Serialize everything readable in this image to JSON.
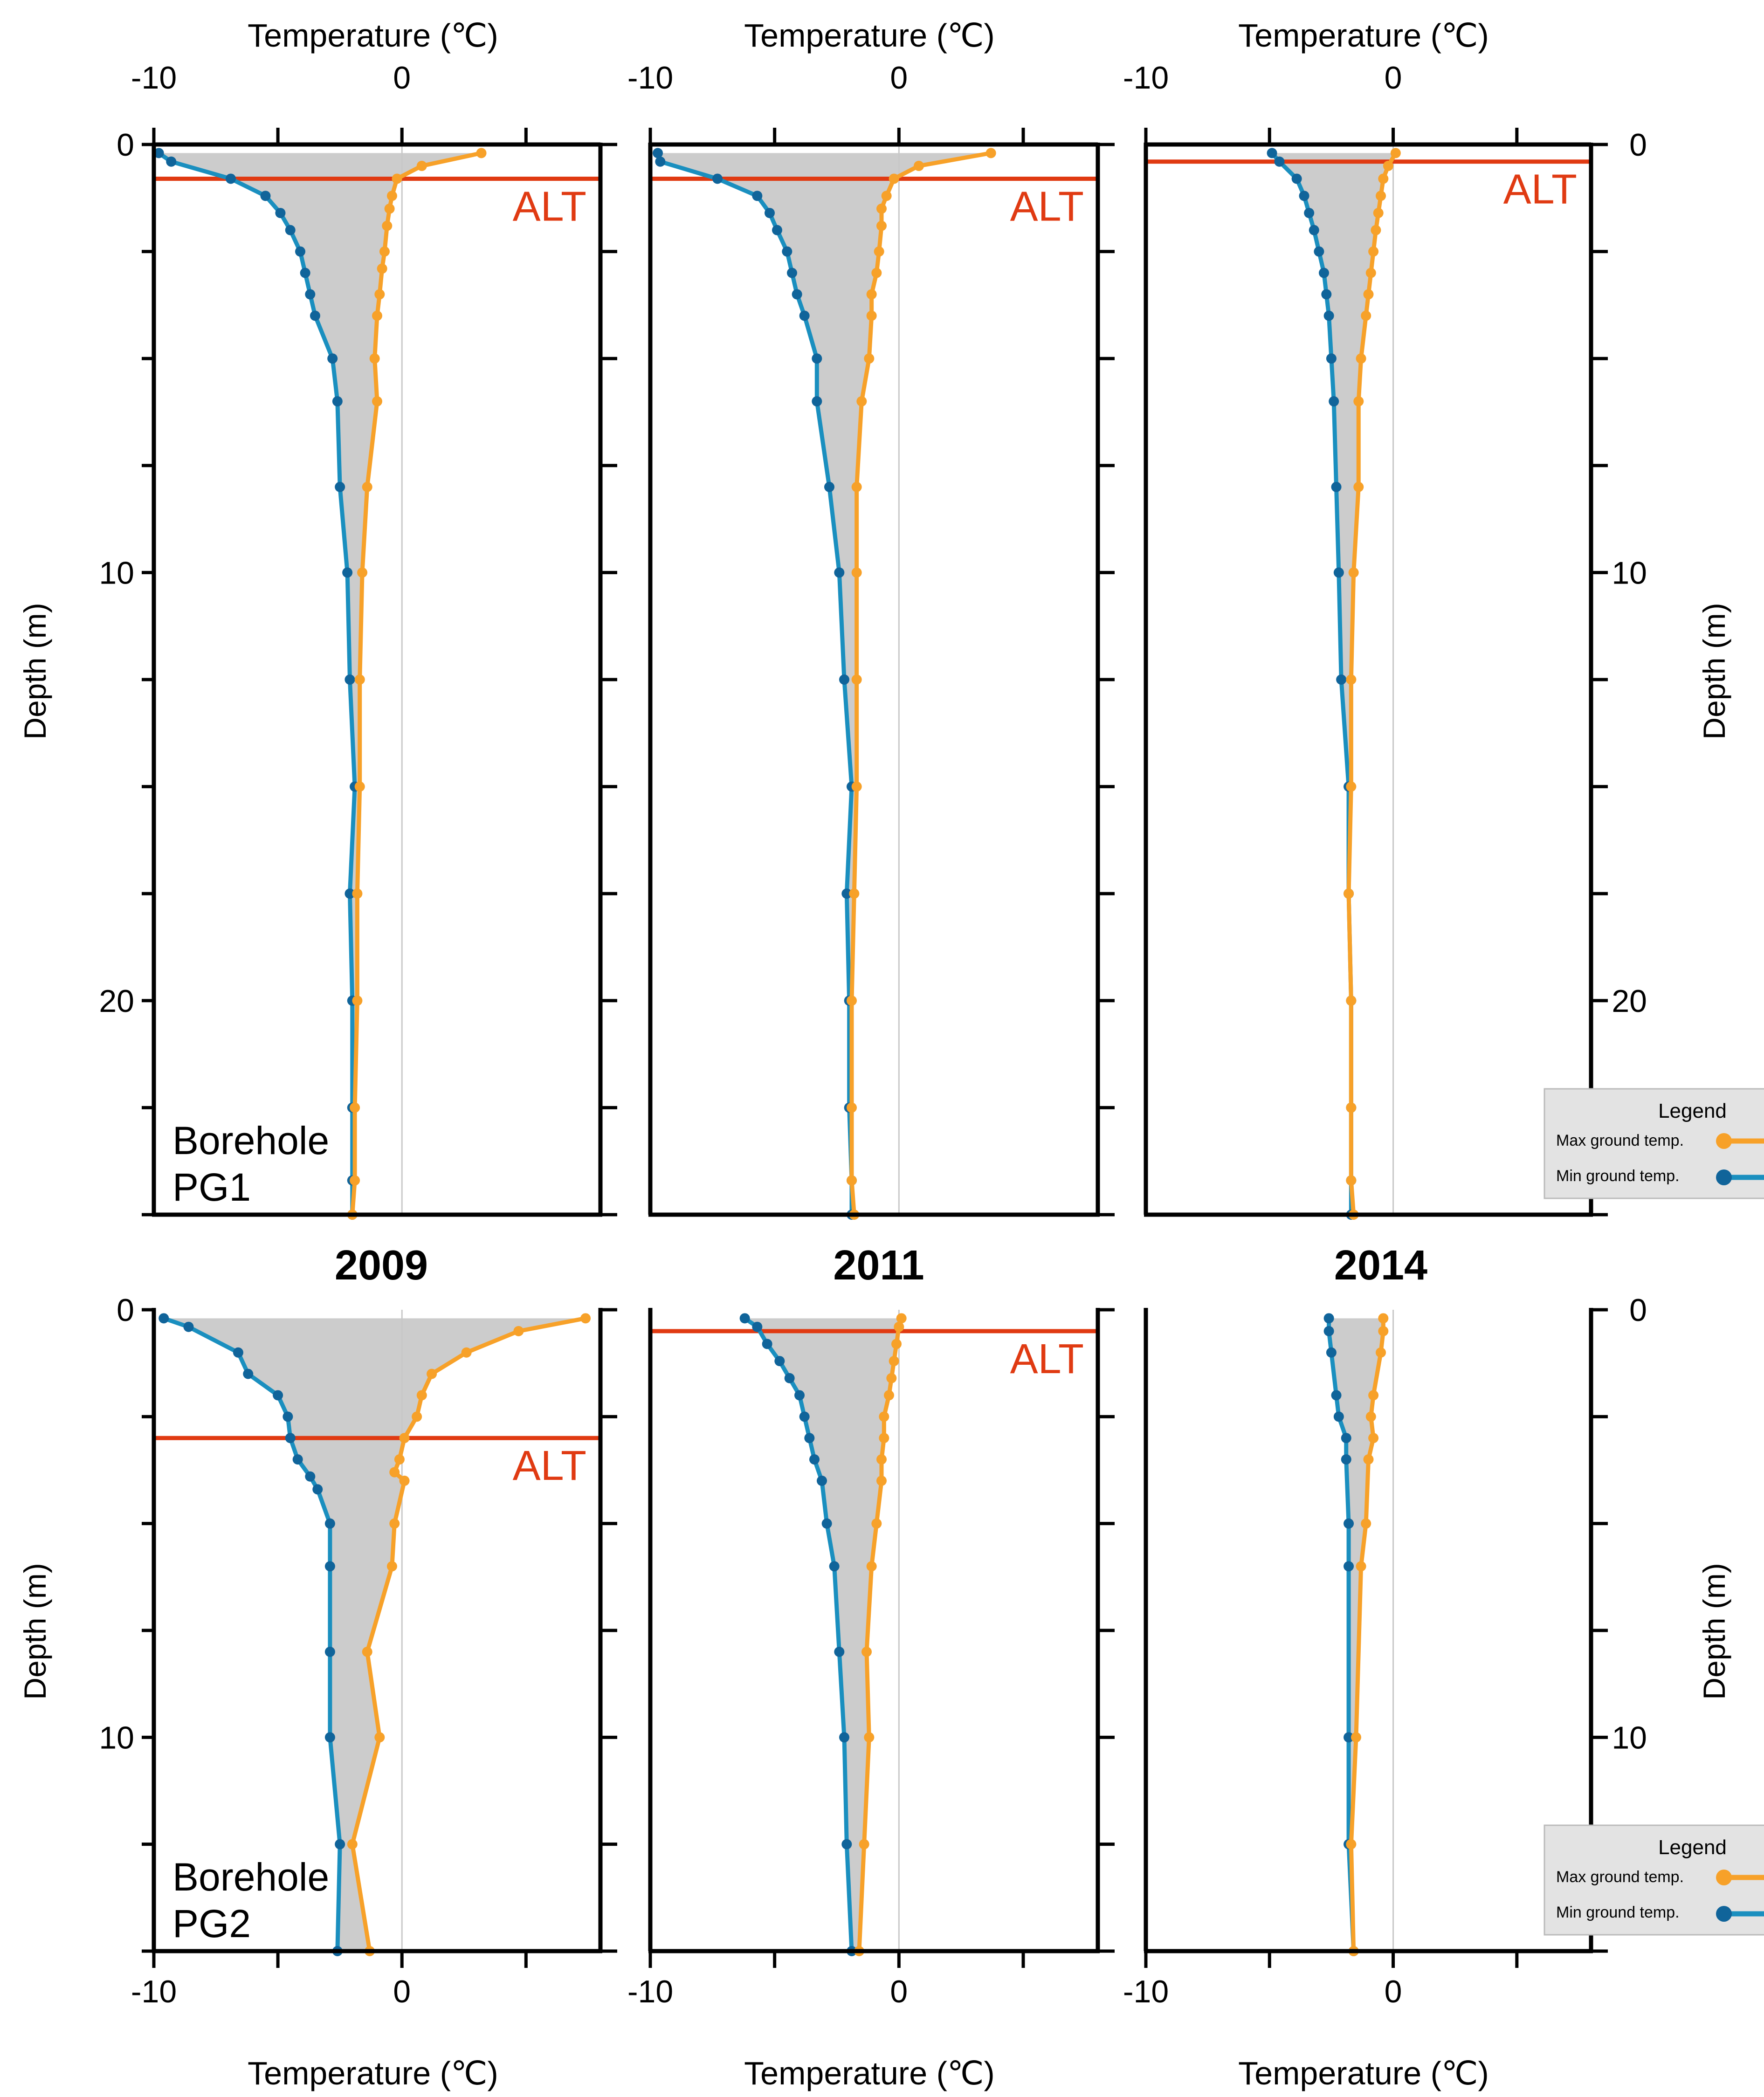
{
  "figure": {
    "top_axis_label": "Temperature (℃)",
    "bottom_axis_label": "Temperature (℃)",
    "y_axis_label": "Depth (m)",
    "alt_label": "ALT",
    "row_labels": [
      "Borehole\nPG1",
      "Borehole\nPG2"
    ],
    "year_labels": [
      "2009",
      "2011",
      "2014"
    ],
    "legend": {
      "title": "Legend",
      "max_label": "Max ground temp.",
      "min_label": "Min ground temp."
    }
  },
  "colors": {
    "max": "#F7A129",
    "min": "#1A8FBF",
    "min_marker": "#10649A",
    "envelope": "#CCCCCC",
    "alt_line": "#E03A12",
    "axis": "#000000",
    "zero_line": "#C8C8C8"
  },
  "chart_data": [
    {
      "type": "line",
      "title": "Borehole PG1 2009",
      "xlabel": "Temperature (℃)",
      "ylabel": "Depth (m)",
      "xlim": [
        -10,
        8
      ],
      "ylim": [
        0,
        25
      ],
      "alt_depth": 0.8,
      "series": [
        {
          "name": "Max ground temp.",
          "x": [
            3.2,
            0.8,
            -0.2,
            -0.4,
            -0.5,
            -0.6,
            -0.7,
            -0.8,
            -0.9,
            -1.0,
            -1.1,
            -1.0,
            -1.4,
            -1.6,
            -1.7,
            -1.7,
            -1.8,
            -1.8,
            -1.9,
            -1.9,
            -2.0
          ],
          "y": [
            0.2,
            0.5,
            0.8,
            1.2,
            1.5,
            1.9,
            2.5,
            2.9,
            3.5,
            4.0,
            5.0,
            6.0,
            8.0,
            10.0,
            12.5,
            15.0,
            17.5,
            20.0,
            22.5,
            24.2,
            25.0
          ]
        },
        {
          "name": "Min ground temp.",
          "x": [
            -9.8,
            -9.3,
            -6.9,
            -5.5,
            -4.9,
            -4.5,
            -4.1,
            -3.9,
            -3.7,
            -3.5,
            -2.8,
            -2.6,
            -2.5,
            -2.2,
            -2.1,
            -1.9,
            -2.1,
            -2.0,
            -2.0,
            -2.0,
            -2.0
          ],
          "y": [
            0.2,
            0.4,
            0.8,
            1.2,
            1.6,
            2.0,
            2.5,
            3.0,
            3.5,
            4.0,
            5.0,
            6.0,
            8.0,
            10.0,
            12.5,
            15.0,
            17.5,
            20.0,
            22.5,
            24.2,
            25.0
          ]
        }
      ]
    },
    {
      "type": "line",
      "title": "Borehole PG1 2011",
      "xlabel": "Temperature (℃)",
      "ylabel": "Depth (m)",
      "xlim": [
        -10,
        8
      ],
      "ylim": [
        0,
        25
      ],
      "alt_depth": 0.8,
      "series": [
        {
          "name": "Max ground temp.",
          "x": [
            3.7,
            0.8,
            -0.2,
            -0.5,
            -0.7,
            -0.7,
            -0.8,
            -0.9,
            -1.1,
            -1.1,
            -1.2,
            -1.5,
            -1.7,
            -1.7,
            -1.7,
            -1.7,
            -1.8,
            -1.9,
            -1.9,
            -1.9,
            -1.8
          ],
          "y": [
            0.2,
            0.5,
            0.8,
            1.2,
            1.5,
            1.9,
            2.5,
            3.0,
            3.5,
            4.0,
            5.0,
            6.0,
            8.0,
            10.0,
            12.5,
            15.0,
            17.5,
            20.0,
            22.5,
            24.2,
            25.0
          ]
        },
        {
          "name": "Min ground temp.",
          "x": [
            -9.7,
            -9.6,
            -7.3,
            -5.7,
            -5.2,
            -4.9,
            -4.5,
            -4.3,
            -4.1,
            -3.8,
            -3.3,
            -3.3,
            -2.8,
            -2.4,
            -2.2,
            -1.9,
            -2.1,
            -2.0,
            -2.0,
            -1.9,
            -1.9
          ],
          "y": [
            0.2,
            0.4,
            0.8,
            1.2,
            1.6,
            2.0,
            2.5,
            3.0,
            3.5,
            4.0,
            5.0,
            6.0,
            8.0,
            10.0,
            12.5,
            15.0,
            17.5,
            20.0,
            22.5,
            24.2,
            25.0
          ]
        }
      ]
    },
    {
      "type": "line",
      "title": "Borehole PG1 2014",
      "xlabel": "Temperature (℃)",
      "ylabel": "Depth (m)",
      "xlim": [
        -10,
        8
      ],
      "ylim": [
        0,
        25
      ],
      "alt_depth": 0.4,
      "series": [
        {
          "name": "Max ground temp.",
          "x": [
            0.1,
            -0.2,
            -0.4,
            -0.5,
            -0.6,
            -0.7,
            -0.8,
            -0.9,
            -1.0,
            -1.1,
            -1.3,
            -1.4,
            -1.4,
            -1.6,
            -1.7,
            -1.7,
            -1.8,
            -1.7,
            -1.7,
            -1.7,
            -1.6
          ],
          "y": [
            0.2,
            0.5,
            0.8,
            1.2,
            1.6,
            2.0,
            2.5,
            3.0,
            3.5,
            4.0,
            5.0,
            6.0,
            8.0,
            10.0,
            12.5,
            15.0,
            17.5,
            20.0,
            22.5,
            24.2,
            25.0
          ]
        },
        {
          "name": "Min ground temp.",
          "x": [
            -4.9,
            -4.6,
            -3.9,
            -3.6,
            -3.4,
            -3.2,
            -3.0,
            -2.8,
            -2.7,
            -2.6,
            -2.5,
            -2.4,
            -2.3,
            -2.2,
            -2.1,
            -1.8,
            -1.8,
            -1.7,
            -1.7,
            -1.7,
            -1.7
          ],
          "y": [
            0.2,
            0.4,
            0.8,
            1.2,
            1.6,
            2.0,
            2.5,
            3.0,
            3.5,
            4.0,
            5.0,
            6.0,
            8.0,
            10.0,
            12.5,
            15.0,
            17.5,
            20.0,
            22.5,
            24.2,
            25.0
          ]
        }
      ]
    },
    {
      "type": "line",
      "title": "Borehole PG2 2009",
      "xlabel": "Temperature (℃)",
      "ylabel": "Depth (m)",
      "xlim": [
        -10,
        8
      ],
      "ylim": [
        0,
        15
      ],
      "alt_depth": 3.0,
      "series": [
        {
          "name": "Max ground temp.",
          "x": [
            7.4,
            4.7,
            2.6,
            1.2,
            0.8,
            0.6,
            0.1,
            -0.1,
            -0.3,
            0.1,
            -0.3,
            -0.4,
            -1.4,
            -0.9,
            -2.0,
            -1.3
          ],
          "y": [
            0.2,
            0.5,
            1.0,
            1.5,
            2.0,
            2.5,
            3.0,
            3.5,
            3.8,
            4.0,
            5.0,
            6.0,
            8.0,
            10.0,
            12.5,
            15.0
          ]
        },
        {
          "name": "Min ground temp.",
          "x": [
            -9.6,
            -8.6,
            -6.6,
            -6.2,
            -5.0,
            -4.6,
            -4.5,
            -4.2,
            -3.7,
            -3.4,
            -2.9,
            -2.9,
            -2.9,
            -2.9,
            -2.5,
            -2.6
          ],
          "y": [
            0.2,
            0.4,
            1.0,
            1.5,
            2.0,
            2.5,
            3.0,
            3.5,
            3.9,
            4.2,
            5.0,
            6.0,
            8.0,
            10.0,
            12.5,
            15.0
          ]
        }
      ]
    },
    {
      "type": "line",
      "title": "Borehole PG2 2011",
      "xlabel": "Temperature (℃)",
      "ylabel": "Depth (m)",
      "xlim": [
        -10,
        8
      ],
      "ylim": [
        0,
        15
      ],
      "alt_depth": 0.5,
      "series": [
        {
          "name": "Max ground temp.",
          "x": [
            0.1,
            0.0,
            -0.1,
            -0.2,
            -0.3,
            -0.4,
            -0.6,
            -0.6,
            -0.7,
            -0.7,
            -0.9,
            -1.1,
            -1.3,
            -1.2,
            -1.4,
            -1.6
          ],
          "y": [
            0.2,
            0.4,
            0.8,
            1.2,
            1.6,
            2.0,
            2.5,
            3.0,
            3.5,
            4.0,
            5.0,
            6.0,
            8.0,
            10.0,
            12.5,
            15.0
          ]
        },
        {
          "name": "Min ground temp.",
          "x": [
            -6.2,
            -5.7,
            -5.3,
            -4.8,
            -4.4,
            -4.0,
            -3.8,
            -3.6,
            -3.4,
            -3.1,
            -2.9,
            -2.6,
            -2.4,
            -2.2,
            -2.1,
            -1.9
          ],
          "y": [
            0.2,
            0.4,
            0.8,
            1.2,
            1.6,
            2.0,
            2.5,
            3.0,
            3.5,
            4.0,
            5.0,
            6.0,
            8.0,
            10.0,
            12.5,
            15.0
          ]
        }
      ]
    },
    {
      "type": "line",
      "title": "Borehole PG2 2014",
      "xlabel": "Temperature (℃)",
      "ylabel": "Depth (m)",
      "xlim": [
        -10,
        8
      ],
      "ylim": [
        0,
        15
      ],
      "alt_depth": null,
      "series": [
        {
          "name": "Max ground temp.",
          "x": [
            -0.4,
            -0.4,
            -0.5,
            -0.8,
            -0.9,
            -0.8,
            -1.0,
            -1.1,
            -1.3,
            -1.5,
            -1.7,
            -1.6
          ],
          "y": [
            0.2,
            0.5,
            1.0,
            2.0,
            2.5,
            3.0,
            3.5,
            5.0,
            6.0,
            10.0,
            12.5,
            15.0
          ]
        },
        {
          "name": "Min ground temp.",
          "x": [
            -2.6,
            -2.6,
            -2.5,
            -2.3,
            -2.2,
            -1.9,
            -1.9,
            -1.8,
            -1.8,
            -1.8,
            -1.8,
            -1.6
          ],
          "y": [
            0.2,
            0.5,
            1.0,
            2.0,
            2.5,
            3.0,
            3.5,
            5.0,
            6.0,
            10.0,
            12.5,
            15.0
          ]
        }
      ]
    }
  ]
}
